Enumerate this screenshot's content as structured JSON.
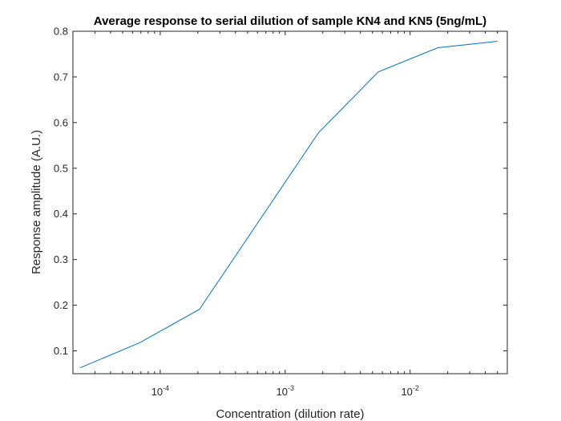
{
  "chart_data": {
    "type": "line",
    "title": "Average response to serial dilution of sample KN4 and KN5 (5ng/mL)",
    "xlabel": "Concentration (dilution rate)",
    "ylabel": "Response amplitude (A.U.)",
    "xscale": "log",
    "xlim": [
      2e-05,
      0.06
    ],
    "ylim": [
      0.05,
      0.8
    ],
    "grid": false,
    "xticks": [
      {
        "value": 0.0001,
        "base": "10",
        "exp": "-4"
      },
      {
        "value": 0.001,
        "base": "10",
        "exp": "-3"
      },
      {
        "value": 0.01,
        "base": "10",
        "exp": "-2"
      }
    ],
    "yticks": [
      "0.1",
      "0.2",
      "0.3",
      "0.4",
      "0.5",
      "0.6",
      "0.7",
      "0.8"
    ],
    "series": [
      {
        "color": "#0072BD",
        "x": [
          2.29e-05,
          6.86e-05,
          0.000206,
          0.00185,
          0.00556,
          0.0167,
          0.05
        ],
        "y": [
          0.063,
          0.118,
          0.191,
          0.578,
          0.711,
          0.764,
          0.778
        ]
      }
    ]
  }
}
